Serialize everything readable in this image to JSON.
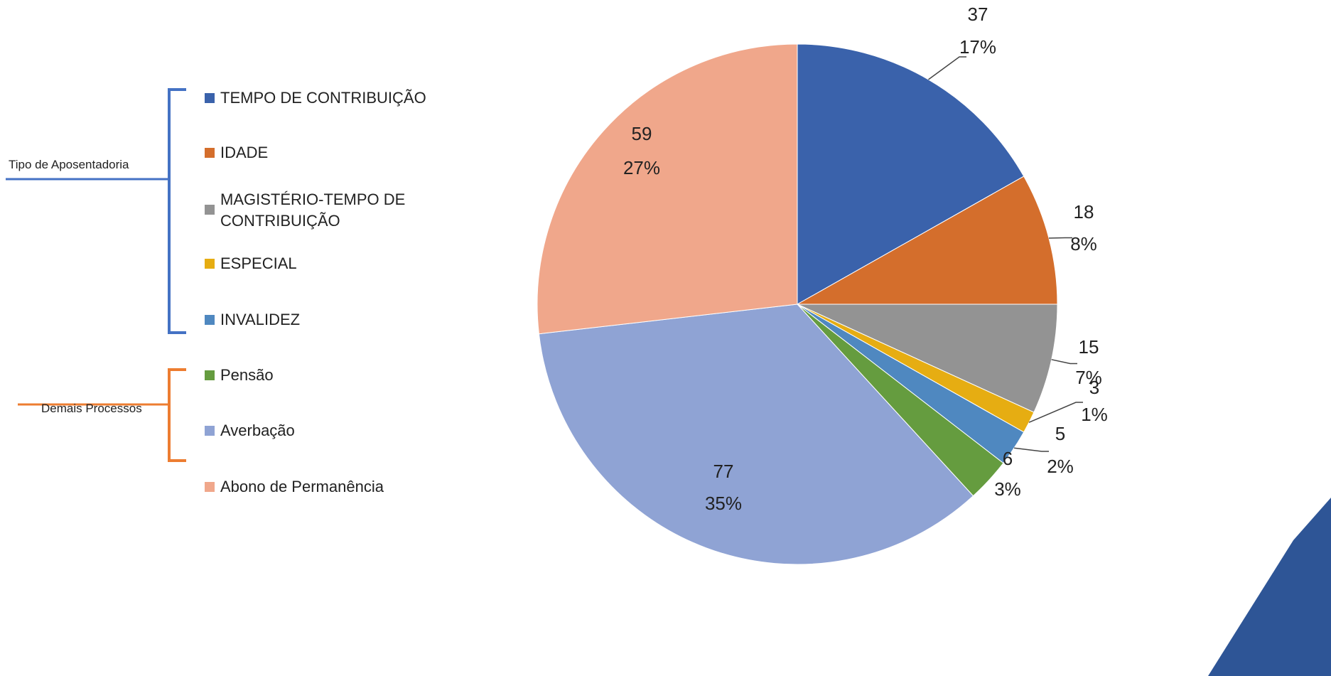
{
  "chart_data": {
    "type": "pie",
    "categories": [
      "TEMPO DE CONTRIBUIÇÃO",
      "IDADE",
      "MAGISTÉRIO-TEMPO DE CONTRIBUIÇÃO",
      "ESPECIAL",
      "INVALIDEZ",
      "Pensão",
      "Averbação",
      "Abono de Permanência"
    ],
    "values": [
      37,
      18,
      15,
      3,
      5,
      6,
      77,
      59
    ],
    "percent_labels": [
      "17%",
      "8%",
      "7%",
      "1%",
      "2%",
      "3%",
      "35%",
      "27%"
    ],
    "colors": [
      "#3a62ab",
      "#d46e2c",
      "#939393",
      "#e6ad12",
      "#4f88c0",
      "#659c3f",
      "#8fa3d4",
      "#f0a78b"
    ],
    "groups": [
      "Tipo de Aposentadoria",
      "Demais Processos"
    ]
  }
}
